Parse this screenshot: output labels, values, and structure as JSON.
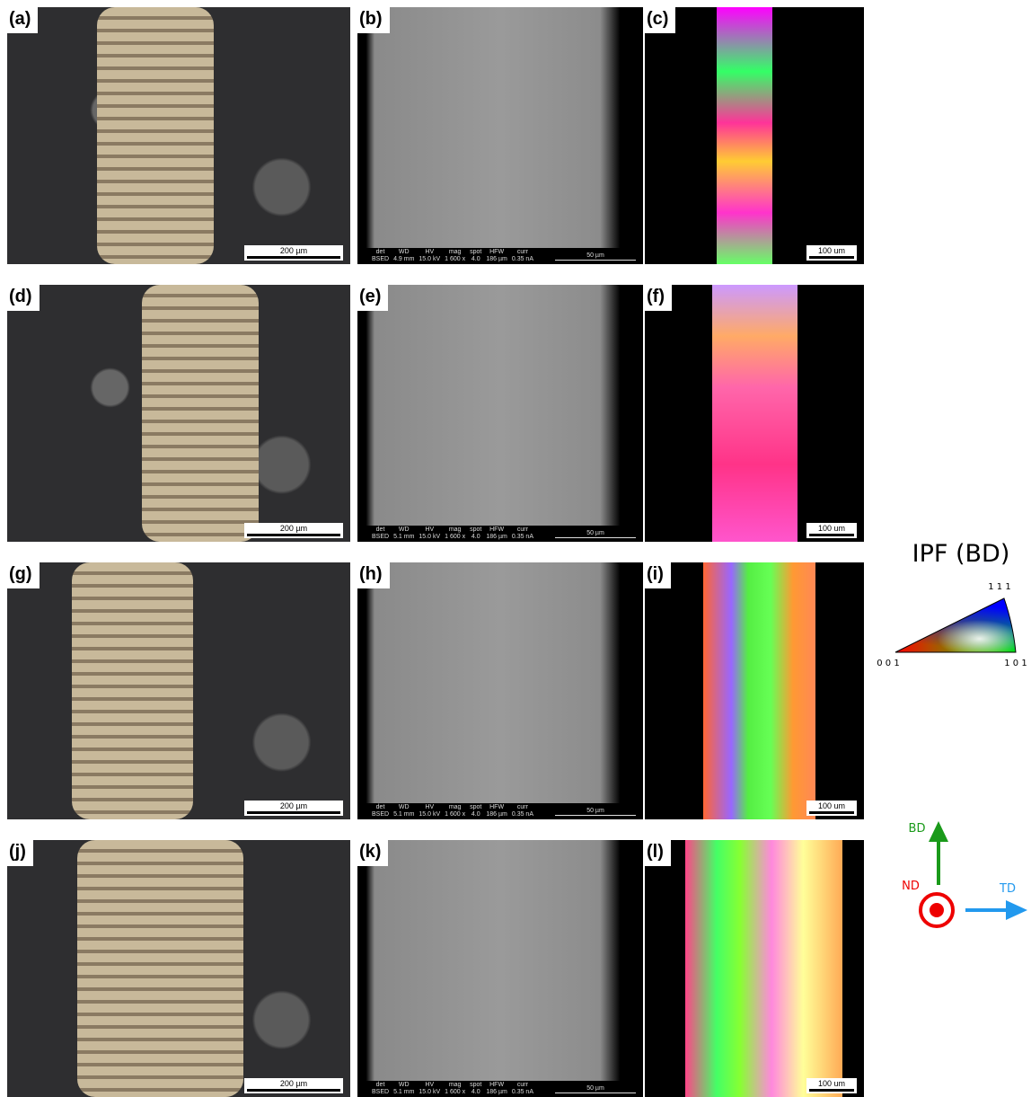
{
  "rows": [
    {
      "optical": {
        "label": "(a)",
        "scale_bar": "200 µm"
      },
      "sem": {
        "label": "(b)",
        "scale_bar": "50 µm",
        "info_heads": [
          "det",
          "WD",
          "HV",
          "mag",
          "spot",
          "HFW",
          "curr"
        ],
        "info_values": [
          "BSED",
          "4.9 mm",
          "15.0 kV",
          "1 600 x",
          "4.0",
          "186 µm",
          "0.35 nA"
        ]
      },
      "ebsd": {
        "label": "(c)",
        "scale_bar": "100 um"
      }
    },
    {
      "optical": {
        "label": "(d)",
        "scale_bar": "200 µm"
      },
      "sem": {
        "label": "(e)",
        "scale_bar": "50 µm",
        "info_heads": [
          "det",
          "WD",
          "HV",
          "mag",
          "spot",
          "HFW",
          "curr"
        ],
        "info_values": [
          "BSED",
          "5.1 mm",
          "15.0 kV",
          "1 600 x",
          "4.0",
          "186 µm",
          "0.35 nA"
        ]
      },
      "ebsd": {
        "label": "(f)",
        "scale_bar": "100 um"
      }
    },
    {
      "optical": {
        "label": "(g)",
        "scale_bar": "200 µm"
      },
      "sem": {
        "label": "(h)",
        "scale_bar": "50 µm",
        "info_heads": [
          "det",
          "WD",
          "HV",
          "mag",
          "spot",
          "HFW",
          "curr"
        ],
        "info_values": [
          "BSED",
          "5.1 mm",
          "15.0 kV",
          "1 600 x",
          "4.0",
          "186 µm",
          "0.35 nA"
        ]
      },
      "ebsd": {
        "label": "(i)",
        "scale_bar": "100 um"
      }
    },
    {
      "optical": {
        "label": "(j)",
        "scale_bar": "200 µm"
      },
      "sem": {
        "label": "(k)",
        "scale_bar": "50 µm",
        "info_heads": [
          "det",
          "WD",
          "HV",
          "mag",
          "spot",
          "HFW",
          "curr"
        ],
        "info_values": [
          "BSED",
          "5.1 mm",
          "15.0 kV",
          "1 600 x",
          "4.0",
          "186 µm",
          "0.35 nA"
        ]
      },
      "ebsd": {
        "label": "(l)",
        "scale_bar": "100 um"
      }
    }
  ],
  "legend": {
    "title": "IPF (BD)",
    "corner_111": "1 1 1",
    "corner_001": "0 0 1",
    "corner_101": "1 0 1"
  },
  "directions": {
    "bd": "BD",
    "nd": "ND",
    "td": "TD"
  }
}
